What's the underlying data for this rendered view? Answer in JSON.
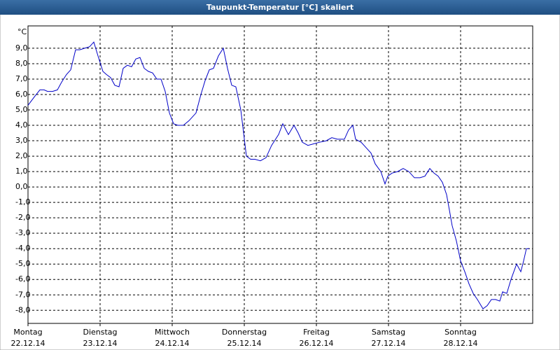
{
  "chart_data": {
    "type": "line",
    "title": "Taupunkt-Temperatur [°C] skaliert",
    "y_unit": "°C",
    "xlim": [
      0,
      7
    ],
    "ylim": [
      -8.85,
      10.45
    ],
    "xticks": [
      {
        "value": 0,
        "label": "Montag",
        "date": "22.12.14"
      },
      {
        "value": 1,
        "label": "Dienstag",
        "date": "23.12.14"
      },
      {
        "value": 2,
        "label": "Mittwoch",
        "date": "24.12.14"
      },
      {
        "value": 3,
        "label": "Donnerstag",
        "date": "25.12.14"
      },
      {
        "value": 4,
        "label": "Freitag",
        "date": "26.12.14"
      },
      {
        "value": 5,
        "label": "Samstag",
        "date": "27.12.14"
      },
      {
        "value": 6,
        "label": "Sonntag",
        "date": "28.12.14"
      }
    ],
    "yticks": [
      {
        "value": 9,
        "label": "9,0"
      },
      {
        "value": 8,
        "label": "8,0"
      },
      {
        "value": 7,
        "label": "7,0"
      },
      {
        "value": 6,
        "label": "6,0"
      },
      {
        "value": 5,
        "label": "5,0"
      },
      {
        "value": 4,
        "label": "4,0"
      },
      {
        "value": 3,
        "label": "3,0"
      },
      {
        "value": 2,
        "label": "2,0"
      },
      {
        "value": 1,
        "label": "1,0"
      },
      {
        "value": 0,
        "label": "0,0"
      },
      {
        "value": -1,
        "label": "-1,0"
      },
      {
        "value": -2,
        "label": "-2,0"
      },
      {
        "value": -3,
        "label": "-3,0"
      },
      {
        "value": -4,
        "label": "-4,0"
      },
      {
        "value": -5,
        "label": "-5,0"
      },
      {
        "value": -6,
        "label": "-6,0"
      },
      {
        "value": -7,
        "label": "-7,0"
      },
      {
        "value": -8,
        "label": "-8,0"
      }
    ],
    "grid": true,
    "x": [
      0,
      0.097,
      0.165,
      0.223,
      0.272,
      0.34,
      0.408,
      0.466,
      0.534,
      0.592,
      0.66,
      0.718,
      0.786,
      0.854,
      0.913,
      0.971,
      1.039,
      1.087,
      1.146,
      1.204,
      1.262,
      1.32,
      1.379,
      1.437,
      1.495,
      1.553,
      1.612,
      1.67,
      1.728,
      1.786,
      1.845,
      1.903,
      1.961,
      2.019,
      2.078,
      2.155,
      2.233,
      2.33,
      2.398,
      2.456,
      2.515,
      2.573,
      2.641,
      2.709,
      2.767,
      2.825,
      2.883,
      2.951,
      3.029,
      3.087,
      3.146,
      3.223,
      3.301,
      3.379,
      3.476,
      3.534,
      3.612,
      3.689,
      3.748,
      3.806,
      3.883,
      3.961,
      4.039,
      4.136,
      4.214,
      4.291,
      4.388,
      4.447,
      4.505,
      4.544,
      4.621,
      4.699,
      4.757,
      4.816,
      4.893,
      4.951,
      4.99,
      5.049,
      5.126,
      5.204,
      5.282,
      5.359,
      5.437,
      5.505,
      5.573,
      5.631,
      5.689,
      5.748,
      5.806,
      5.845,
      5.883,
      5.942,
      6.0,
      6.058,
      6.117,
      6.175,
      6.233,
      6.311,
      6.369,
      6.427,
      6.485,
      6.544,
      6.583,
      6.641,
      6.699,
      6.777,
      6.835,
      6.874,
      6.913,
      6.951
    ],
    "series": [
      {
        "name": "Taupunkt",
        "color": "#0000c8",
        "values": [
          5.3,
          5.9,
          6.3,
          6.3,
          6.2,
          6.2,
          6.3,
          6.8,
          7.3,
          7.6,
          8.9,
          8.9,
          9.0,
          9.1,
          9.4,
          8.5,
          7.5,
          7.3,
          7.1,
          6.6,
          6.5,
          7.7,
          7.9,
          7.8,
          8.3,
          8.4,
          7.7,
          7.5,
          7.4,
          7.0,
          7.0,
          6.2,
          4.8,
          4.1,
          4.0,
          4.0,
          4.3,
          4.8,
          6.0,
          6.9,
          7.6,
          7.7,
          8.5,
          9.0,
          7.7,
          6.6,
          6.5,
          5.0,
          2.0,
          1.8,
          1.8,
          1.7,
          1.9,
          2.7,
          3.4,
          4.1,
          3.4,
          4.0,
          3.5,
          2.9,
          2.7,
          2.8,
          2.9,
          3.0,
          3.2,
          3.1,
          3.1,
          3.7,
          4.0,
          3.1,
          2.9,
          2.5,
          2.2,
          1.5,
          1.0,
          0.2,
          0.7,
          0.9,
          1.0,
          1.2,
          1.0,
          0.6,
          0.6,
          0.7,
          1.2,
          0.9,
          0.7,
          0.3,
          -0.5,
          -1.5,
          -2.5,
          -3.5,
          -4.8,
          -5.5,
          -6.3,
          -6.9,
          -7.3,
          -7.9,
          -7.7,
          -7.3,
          -7.3,
          -7.4,
          -6.8,
          -6.9,
          -6.0,
          -5.0,
          -5.5,
          -4.8,
          -4.0,
          -4.0
        ]
      }
    ]
  }
}
